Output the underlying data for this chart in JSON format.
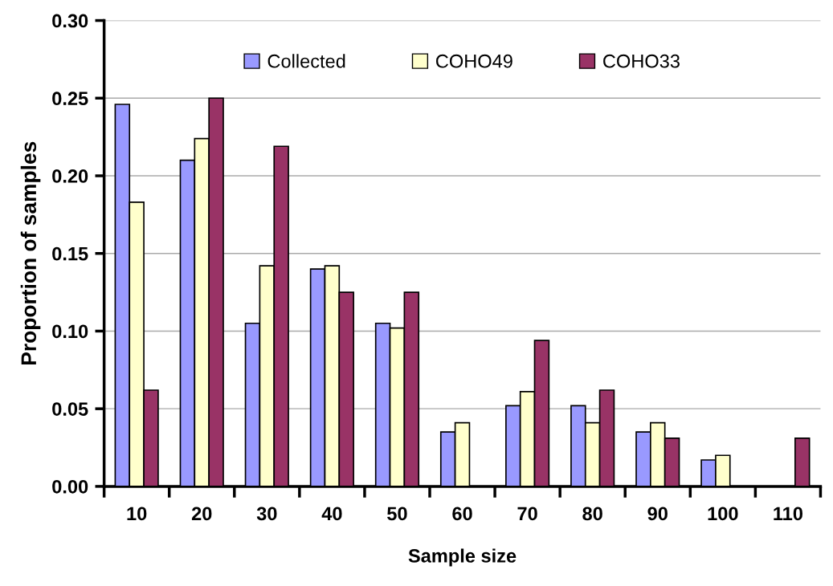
{
  "chart_data": {
    "type": "bar",
    "xlabel": "Sample size",
    "ylabel": "Proportion of samples",
    "categories": [
      "10",
      "20",
      "30",
      "40",
      "50",
      "60",
      "70",
      "80",
      "90",
      "100",
      "110"
    ],
    "series": [
      {
        "name": "Collected",
        "color": "#9999ff",
        "values": [
          0.246,
          0.21,
          0.105,
          0.14,
          0.105,
          0.035,
          0.052,
          0.052,
          0.035,
          0.017,
          null
        ]
      },
      {
        "name": "COHO49",
        "color": "#ffffcc",
        "values": [
          0.183,
          0.224,
          0.142,
          0.142,
          0.102,
          0.041,
          0.061,
          0.041,
          0.041,
          0.02,
          null
        ]
      },
      {
        "name": "COHO33",
        "color": "#993366",
        "values": [
          0.062,
          0.25,
          0.219,
          0.125,
          0.125,
          null,
          0.094,
          0.062,
          0.031,
          null,
          0.031
        ]
      }
    ],
    "ylim": [
      0,
      0.3
    ],
    "yticks": [
      {
        "value": 0,
        "label": "0.00"
      },
      {
        "value": 0.05,
        "label": "0.05"
      },
      {
        "value": 0.1,
        "label": "0.10"
      },
      {
        "value": 0.15,
        "label": "0.15"
      },
      {
        "value": 0.2,
        "label": "0.20"
      },
      {
        "value": 0.25,
        "label": "0.25"
      },
      {
        "value": 0.3,
        "label": "0.30"
      }
    ],
    "grid": "y",
    "legend": "top"
  }
}
